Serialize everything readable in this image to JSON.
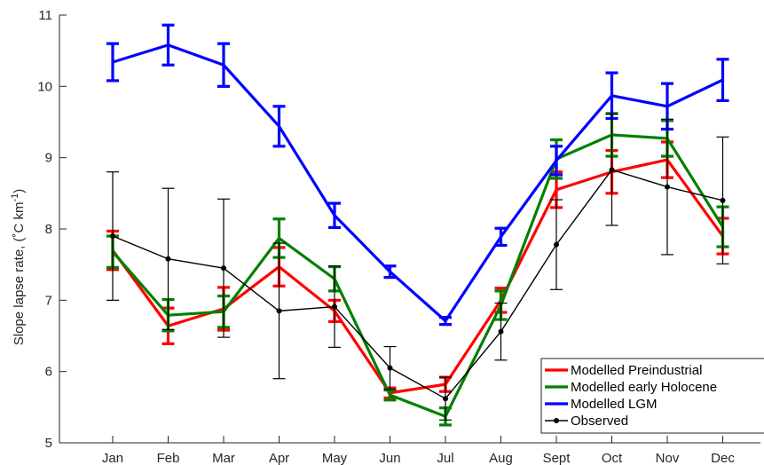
{
  "chart_data": {
    "type": "line",
    "title": "",
    "xlabel": "",
    "ylabel": "Slope lapse rate, (˚C km",
    "ylabel_sup": "-1",
    "ylabel_tail": ")",
    "categories": [
      "Jan",
      "Feb",
      "Mar",
      "Apr",
      "May",
      "Jun",
      "Jul",
      "Aug",
      "Sept",
      "Oct",
      "Nov",
      "Dec"
    ],
    "ylim": [
      5,
      11
    ],
    "yticks": [
      5,
      6,
      7,
      8,
      9,
      10,
      11
    ],
    "grid": false,
    "legend_position": "bottom-right",
    "series": [
      {
        "name": "Modelled Preindustrial",
        "color": "#ff0000",
        "values": [
          7.7,
          6.64,
          6.88,
          7.47,
          6.85,
          5.7,
          5.82,
          7.0,
          8.55,
          8.8,
          8.97,
          7.9
        ],
        "err": [
          0.27,
          0.25,
          0.3,
          0.27,
          0.15,
          0.07,
          0.1,
          0.17,
          0.25,
          0.3,
          0.25,
          0.25
        ]
      },
      {
        "name": "Modelled early Holocene",
        "color": "#008000",
        "values": [
          7.68,
          6.79,
          6.84,
          7.87,
          7.3,
          5.67,
          5.37,
          6.93,
          8.98,
          9.32,
          9.27,
          8.03
        ],
        "err": [
          0.22,
          0.22,
          0.22,
          0.27,
          0.17,
          0.07,
          0.12,
          0.2,
          0.27,
          0.3,
          0.25,
          0.28
        ]
      },
      {
        "name": "Modelled LGM",
        "color": "#0000ff",
        "values": [
          10.34,
          10.58,
          10.3,
          9.44,
          8.19,
          7.4,
          6.71,
          7.89,
          8.96,
          9.87,
          9.72,
          10.09
        ],
        "err": [
          0.26,
          0.28,
          0.3,
          0.28,
          0.17,
          0.08,
          0.05,
          0.12,
          0.2,
          0.32,
          0.32,
          0.29
        ]
      },
      {
        "name": "Observed",
        "color": "#000000",
        "marker": "dot",
        "values": [
          7.9,
          7.58,
          7.45,
          6.85,
          6.91,
          6.05,
          5.62,
          6.56,
          7.78,
          8.83,
          8.59,
          8.4
        ],
        "err": [
          0.9,
          0.99,
          0.97,
          0.95,
          0.57,
          0.3,
          0.3,
          0.4,
          0.63,
          0.78,
          0.95,
          0.89
        ]
      }
    ]
  }
}
